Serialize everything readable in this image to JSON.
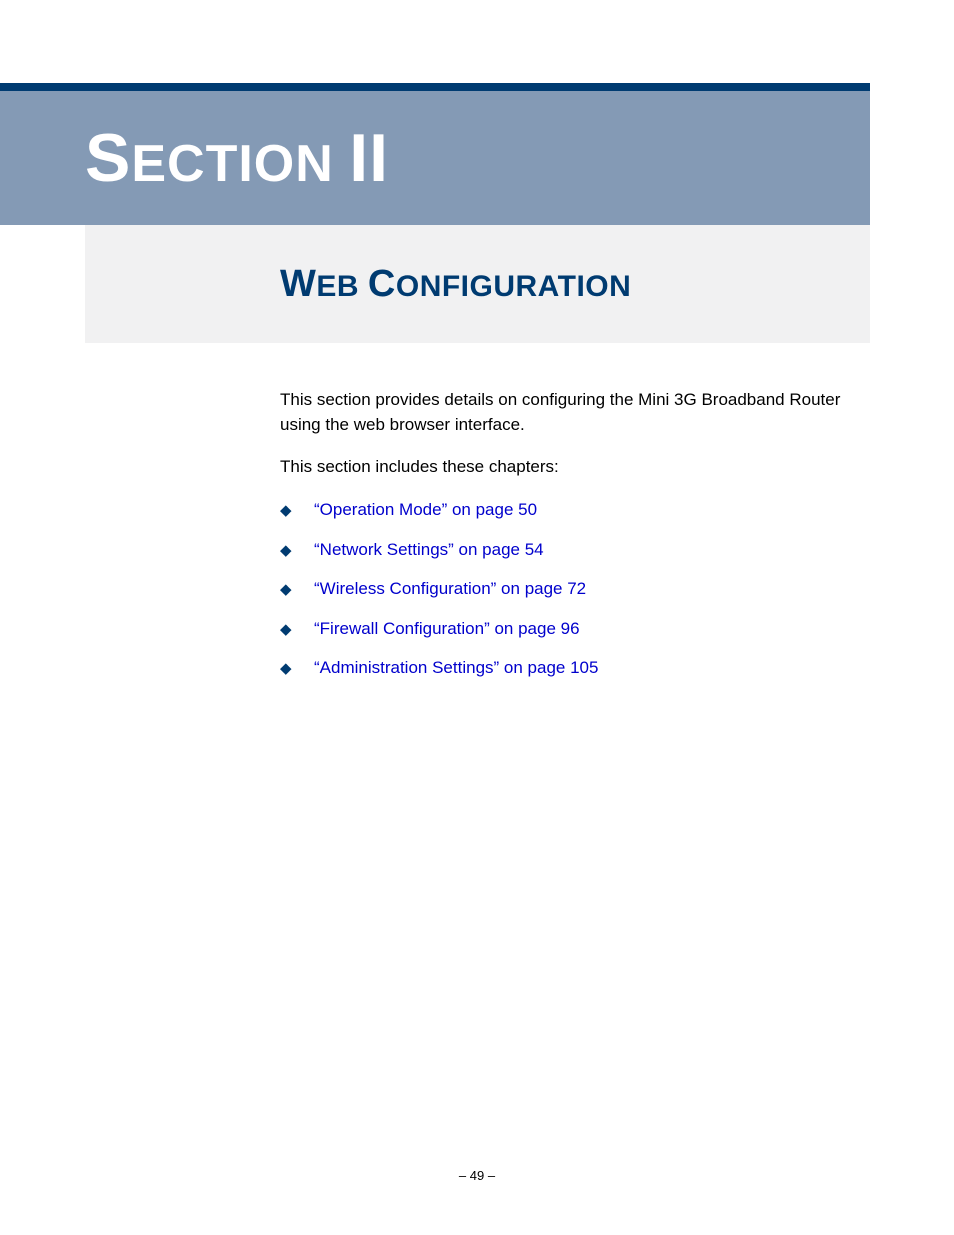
{
  "colors": {
    "dark_blue": "#003b71",
    "steel_blue": "#849ab5",
    "light_gray": "#f1f1f2",
    "link_blue": "#0000cc",
    "white": "#ffffff",
    "black": "#000000"
  },
  "banner": {
    "char1_big": "S",
    "rest1_small": "ECTION",
    "space": " ",
    "roman": "II"
  },
  "subtitle": {
    "w_big": "W",
    "w_rest": "EB",
    "space": " ",
    "c_big": "C",
    "c_rest": "ONFIGURATION"
  },
  "intro": {
    "p1": "This section provides details on configuring the Mini 3G Broadband Router using the web browser interface.",
    "p2": "This section includes these chapters:"
  },
  "chapters": [
    {
      "text": "“Operation Mode” on page 50"
    },
    {
      "text": "“Network Settings” on page 54"
    },
    {
      "text": "“Wireless Configuration” on page 72"
    },
    {
      "text": "“Firewall Configuration” on page 96"
    },
    {
      "text": "“Administration Settings” on page 105"
    }
  ],
  "bullet_glyph": "◆",
  "footer": {
    "text": "–  49  –"
  }
}
